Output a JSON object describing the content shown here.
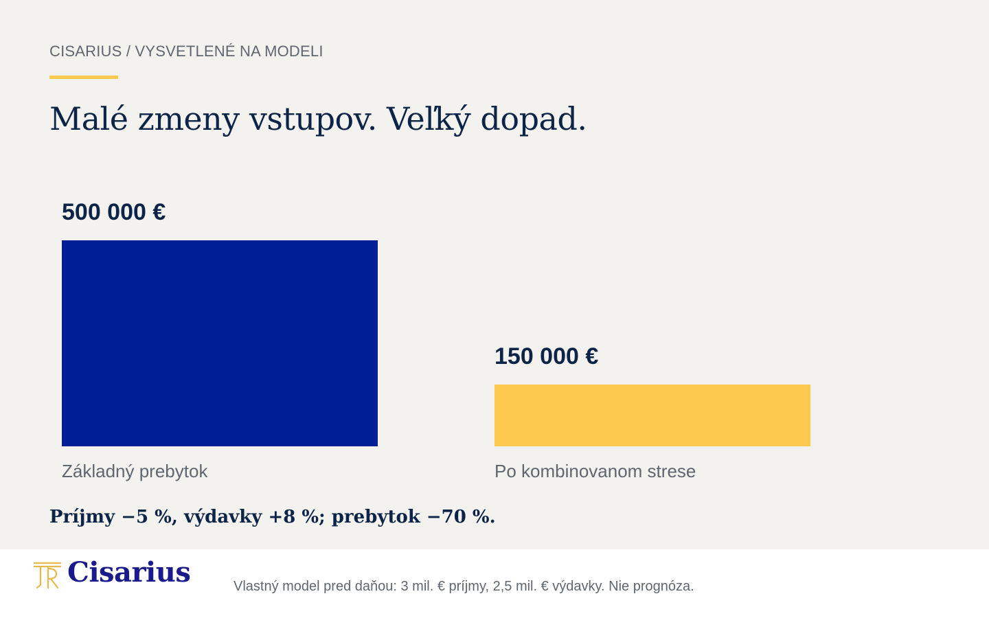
{
  "header": {
    "kicker": "CISARIUS / VYSVETLENÉ NA MODELI",
    "headline": "Malé zmeny vstupov. Veľký dopad."
  },
  "chart_data": {
    "type": "bar",
    "categories": [
      "Základný prebytok",
      "Po kombinovanom strese"
    ],
    "values": [
      500000,
      150000
    ],
    "value_labels": [
      "500 000 €",
      "150 000 €"
    ],
    "colors": [
      "#001e96",
      "#fec94f"
    ],
    "title": "",
    "xlabel": "",
    "ylabel": "",
    "ylim": [
      0,
      500000
    ],
    "grid": false,
    "legend": "none"
  },
  "summary": "Príjmy −5 %, výdavky +8 %; prebytok −70 %.",
  "footer": {
    "brand_name": "Cisarius",
    "logo_icon": "cisarius-monogram-icon",
    "logo_color": "#e9b84a",
    "note": "Vlastný model pred daňou: 3 mil. € príjmy, 2,5 mil. € výdavky. Nie prognóza."
  }
}
